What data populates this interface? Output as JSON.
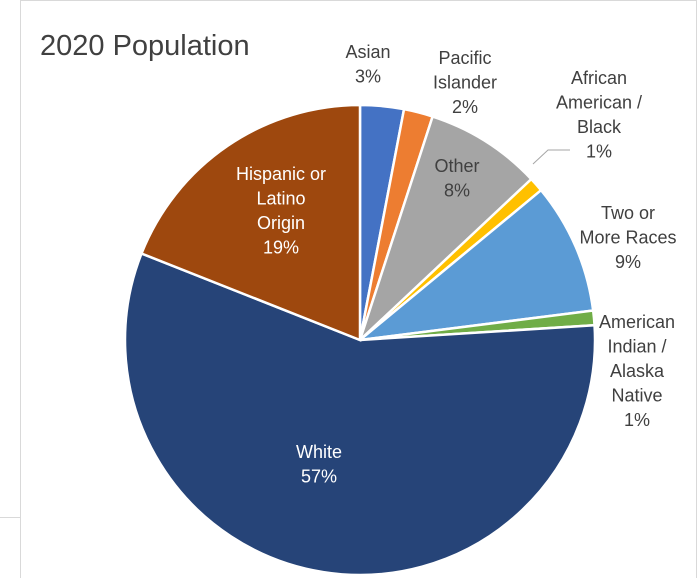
{
  "chart_data": {
    "type": "pie",
    "title": "2020 Population",
    "slices": [
      {
        "name": "Asian",
        "value": 3,
        "label_pct": "3%",
        "color": "#4472c4"
      },
      {
        "name": "Pacific Islander",
        "value": 2,
        "label_pct": "2%",
        "color": "#ed7d31"
      },
      {
        "name": "Other",
        "value": 8,
        "label_pct": "8%",
        "color": "#a5a5a5"
      },
      {
        "name": "African American / Black",
        "value": 1,
        "label_pct": "1%",
        "color": "#ffc000"
      },
      {
        "name": "Two or More Races",
        "value": 9,
        "label_pct": "9%",
        "color": "#5b9bd5"
      },
      {
        "name": "American Indian / Alaska Native",
        "value": 1,
        "label_pct": "1%",
        "color": "#70ad47"
      },
      {
        "name": "White",
        "value": 57,
        "label_pct": "57%",
        "color": "#264478"
      },
      {
        "name": "Hispanic or Latino Origin",
        "value": 19,
        "label_pct": "19%",
        "color": "#9e480e"
      }
    ]
  }
}
